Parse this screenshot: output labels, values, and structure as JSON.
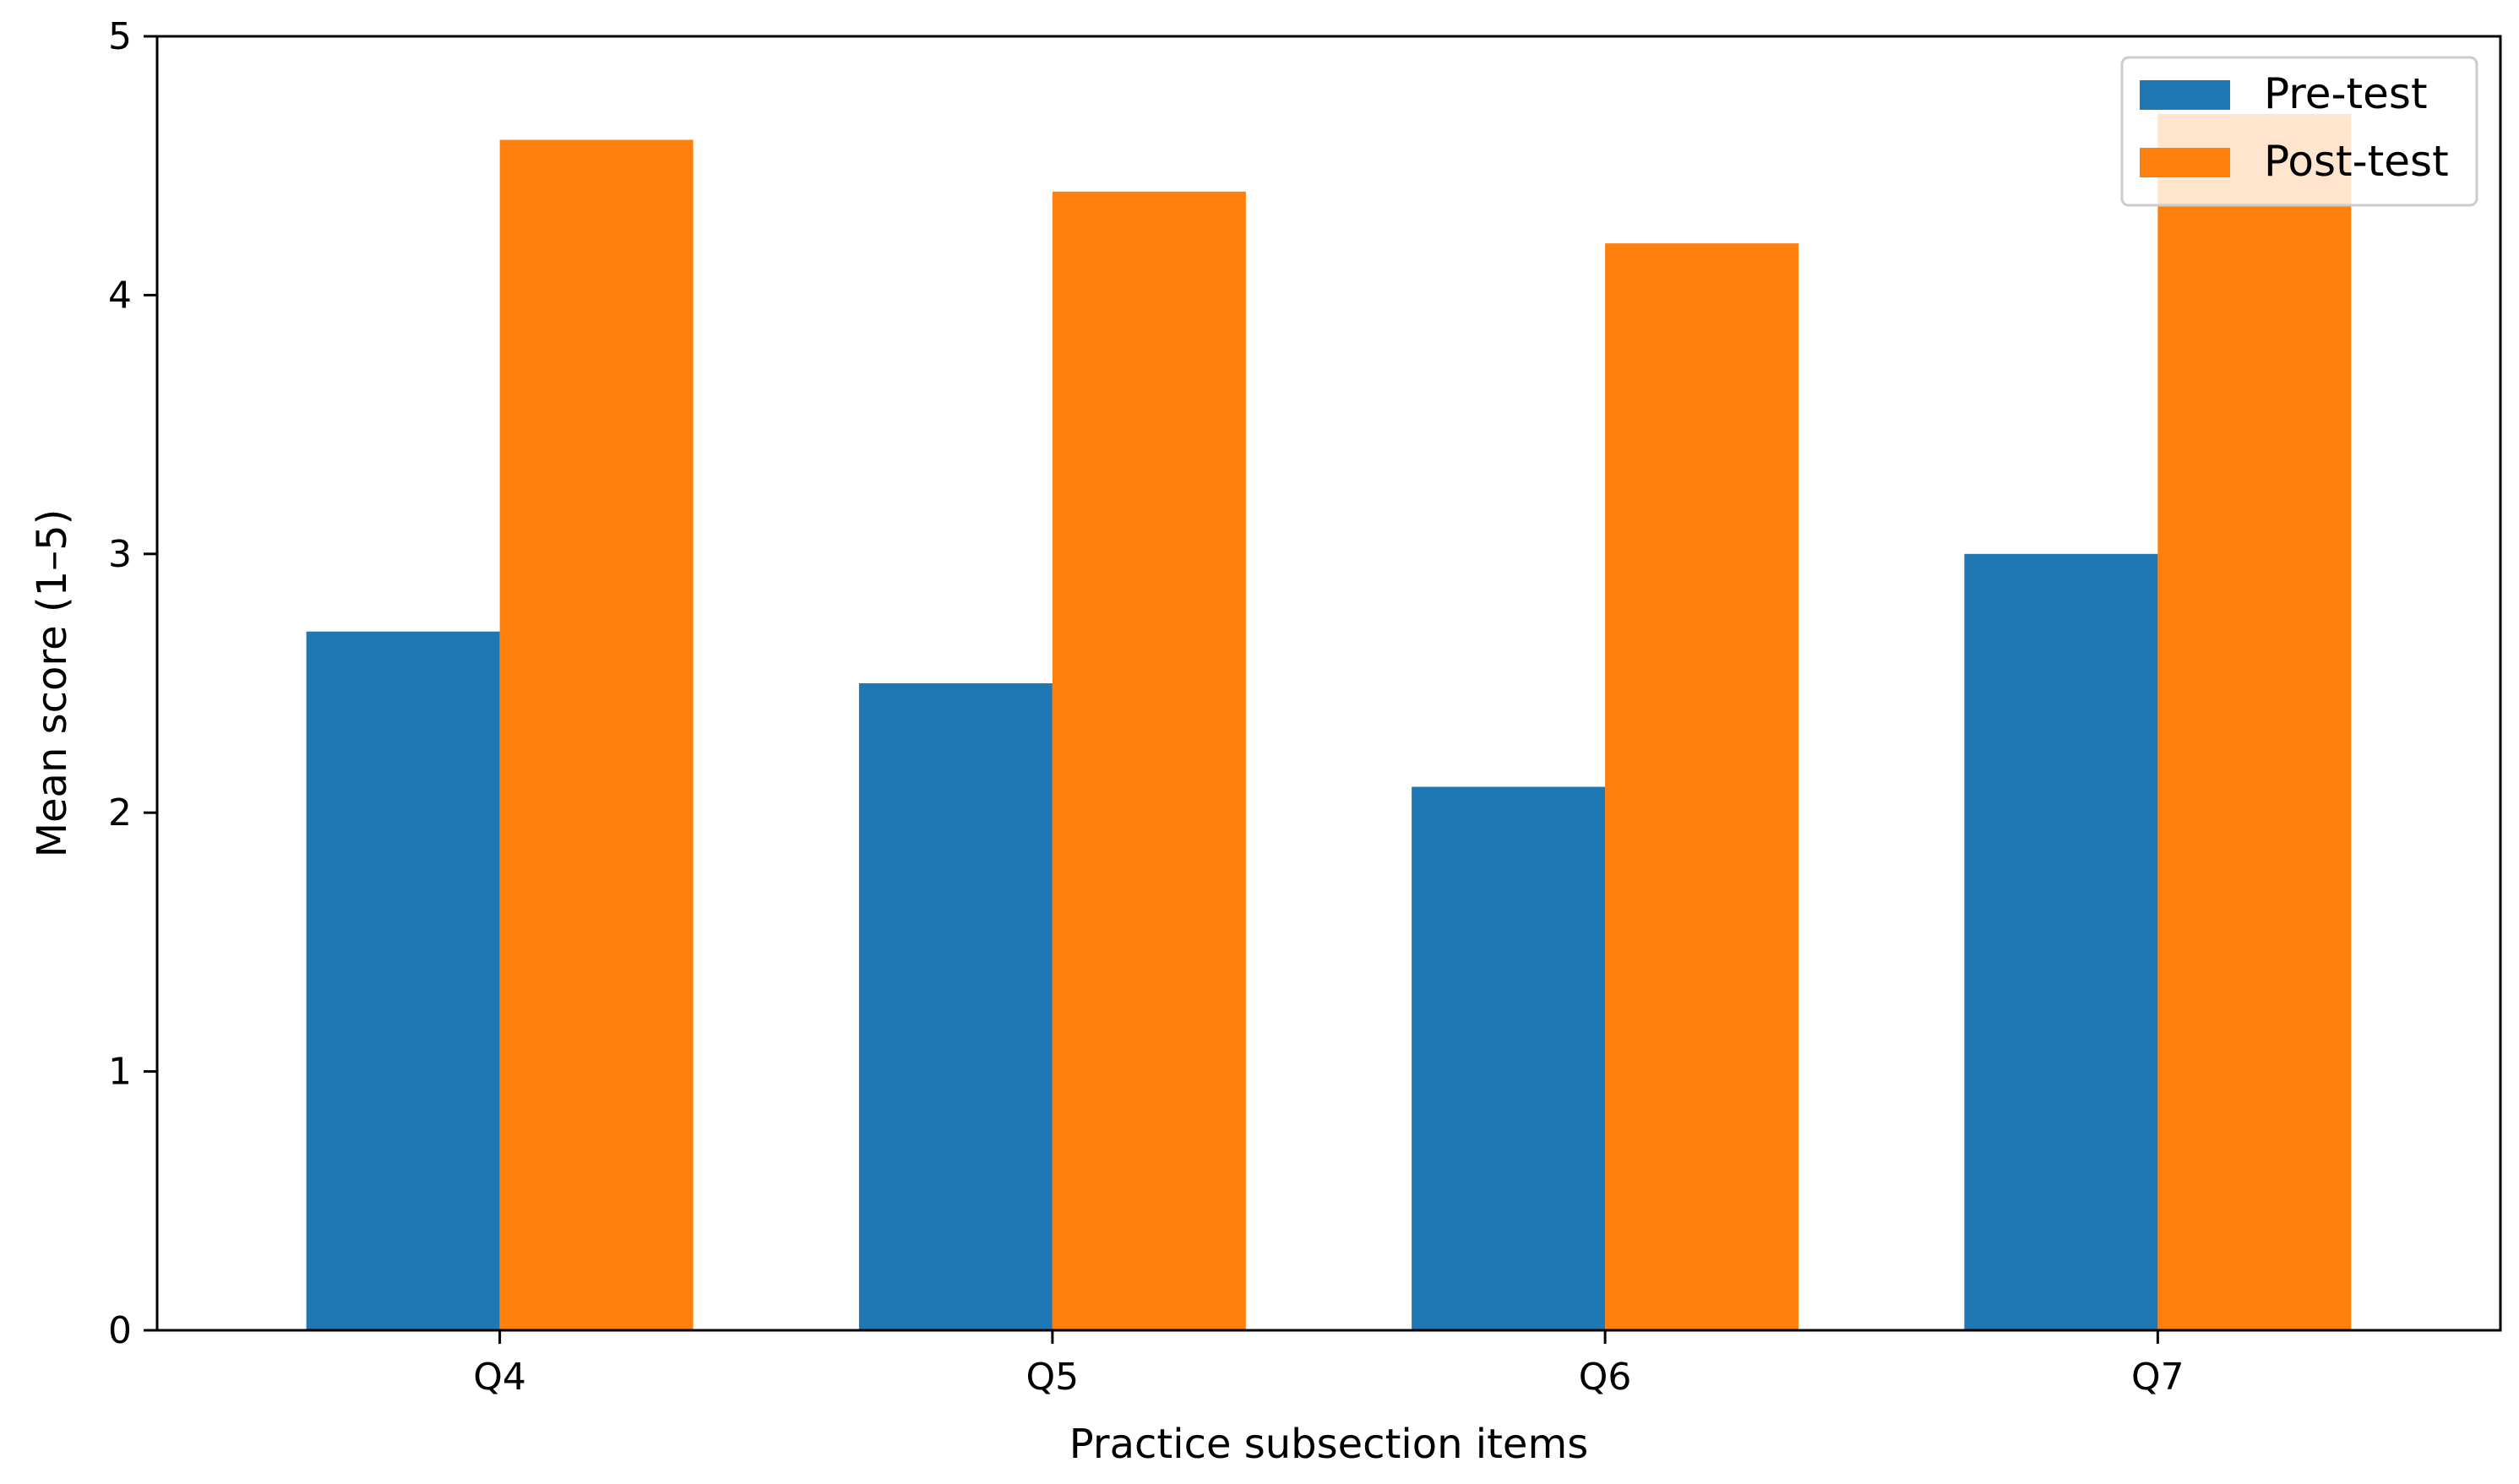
{
  "chart_data": {
    "type": "bar",
    "categories": [
      "Q4",
      "Q5",
      "Q6",
      "Q7"
    ],
    "series": [
      {
        "name": "Pre-test",
        "values": [
          2.7,
          2.5,
          2.1,
          3.0
        ],
        "color": "#1f77b4"
      },
      {
        "name": "Post-test",
        "values": [
          4.6,
          4.4,
          4.2,
          4.7
        ],
        "color": "#ff7f0e"
      }
    ],
    "xlabel": "Practice subsection items",
    "ylabel": "Mean score (1–5)",
    "ylim": [
      0,
      5
    ],
    "yticks": [
      "0",
      "1",
      "2",
      "3",
      "4",
      "5"
    ],
    "grid": false,
    "legend_position": "top-right"
  }
}
